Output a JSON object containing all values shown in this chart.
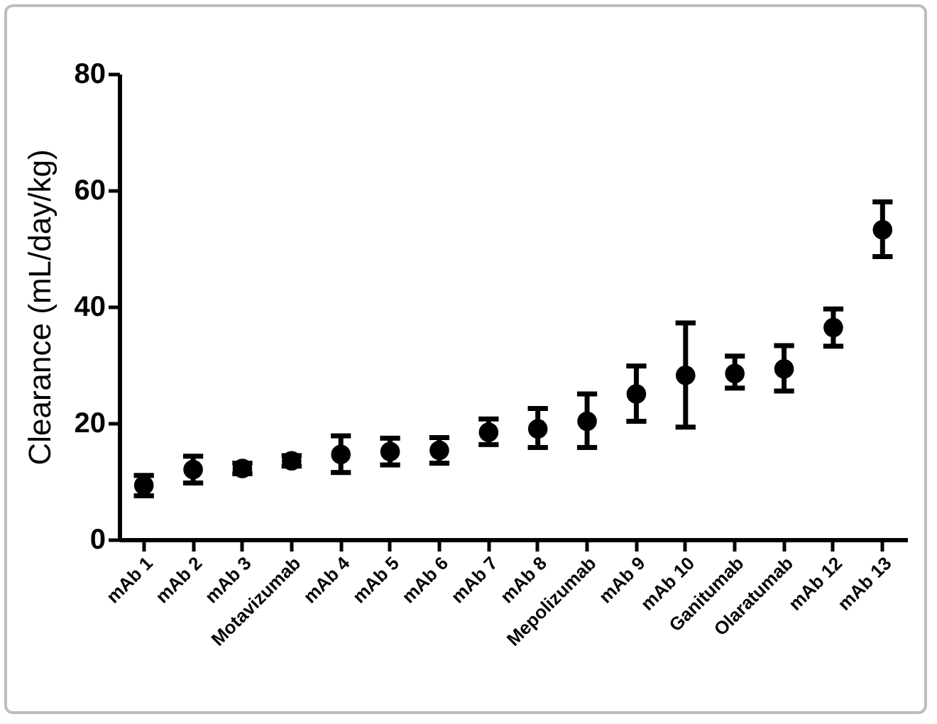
{
  "chart_data": {
    "type": "scatter",
    "ylabel": "Clearance (mL/day/kg)",
    "categories": [
      "mAb 1",
      "mAb 2",
      "mAb 3",
      "Motavizumab",
      "mAb 4",
      "mAb 5",
      "mAb 6",
      "mAb 7",
      "mAb 8",
      "Mepolizumab",
      "mAb 9",
      "mAb 10",
      "Ganitumab",
      "Olaratumab",
      "mAb 12",
      "mAb 13"
    ],
    "series": [
      {
        "color": "#000000",
        "values": [
          9.3,
          12,
          12.2,
          13.5,
          14.6,
          15.1,
          15.3,
          18.4,
          19,
          20.3,
          25,
          28.2,
          28.5,
          29.3,
          36.4,
          53.2
        ],
        "errors": [
          [
            7.5,
            11
          ],
          [
            9.7,
            14.3
          ],
          [
            11.3,
            13.1
          ],
          [
            12.6,
            14.4
          ],
          [
            11.5,
            17.8
          ],
          [
            12.8,
            17.4
          ],
          [
            13.1,
            17.5
          ],
          [
            16.3,
            20.7
          ],
          [
            15.8,
            22.5
          ],
          [
            15.8,
            25
          ],
          [
            20.3,
            29.8
          ],
          [
            19.3,
            37.2
          ],
          [
            26,
            31.5
          ],
          [
            25.5,
            33.3
          ],
          [
            33.2,
            39.6
          ],
          [
            48.6,
            58
          ]
        ]
      }
    ],
    "ylim": [
      0,
      80
    ],
    "yticks": [
      0,
      20,
      40,
      60,
      80
    ],
    "grid": false,
    "marker": "circle"
  }
}
